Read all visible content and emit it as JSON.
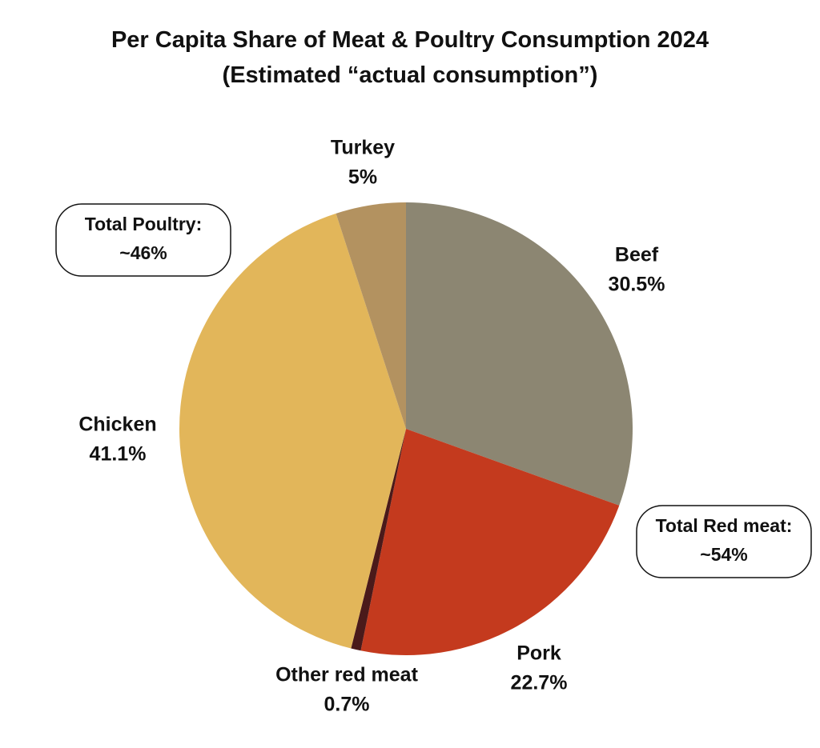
{
  "chart_data": {
    "type": "pie",
    "title": "Per Capita Share of Meat & Poultry Consumption 2024 (Estimated “actual consumption”)",
    "categories": [
      "Beef",
      "Pork",
      "Other red meat",
      "Chicken",
      "Turkey"
    ],
    "values": [
      30.5,
      22.7,
      0.7,
      41.1,
      5
    ],
    "value_labels": [
      "30.5%",
      "22.7%",
      "0.7%",
      "41.1%",
      "5%"
    ],
    "colors": [
      "#8c8672",
      "#c43a1e",
      "#4a1a1a",
      "#e2b65a",
      "#b39260"
    ],
    "annotations": [
      {
        "lines": [
          "Total Poultry:",
          "~46%"
        ]
      },
      {
        "lines": [
          "Total Red meat:",
          "~54%"
        ]
      }
    ]
  }
}
